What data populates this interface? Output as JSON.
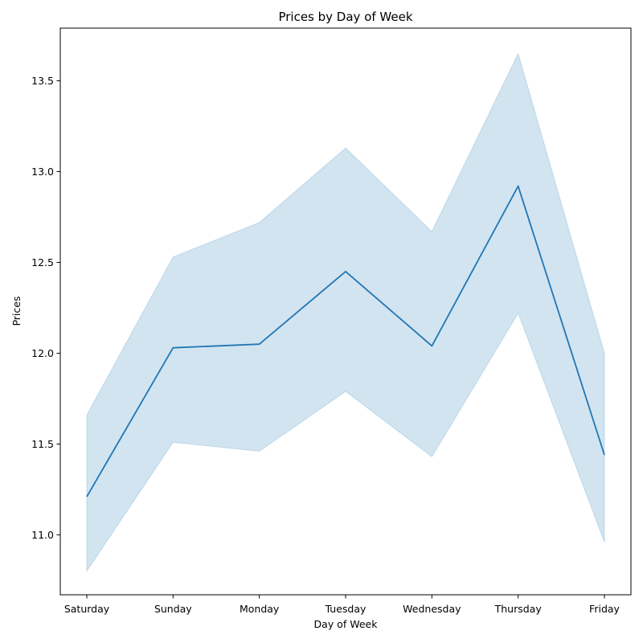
{
  "chart_data": {
    "type": "line",
    "title": "Prices by Day of Week",
    "xlabel": "Day of Week",
    "ylabel": "Prices",
    "categories": [
      "Saturday",
      "Sunday",
      "Monday",
      "Tuesday",
      "Wednesday",
      "Thursday",
      "Friday"
    ],
    "series": [
      {
        "values": [
          11.21,
          12.03,
          12.05,
          12.45,
          12.04,
          12.92,
          11.44
        ],
        "ci_upper": [
          11.66,
          12.53,
          12.72,
          13.13,
          12.67,
          13.65,
          12.0
        ],
        "ci_lower": [
          10.8,
          11.51,
          11.46,
          11.79,
          11.43,
          12.22,
          10.96
        ]
      }
    ],
    "ylim": [
      10.67,
      13.79
    ],
    "yticks": [
      "11.0",
      "11.5",
      "12.0",
      "12.5",
      "13.0",
      "13.5"
    ],
    "grid": false,
    "legend": "none",
    "colors": {
      "line": "#1f77b4",
      "band": "#1f77b4"
    }
  }
}
